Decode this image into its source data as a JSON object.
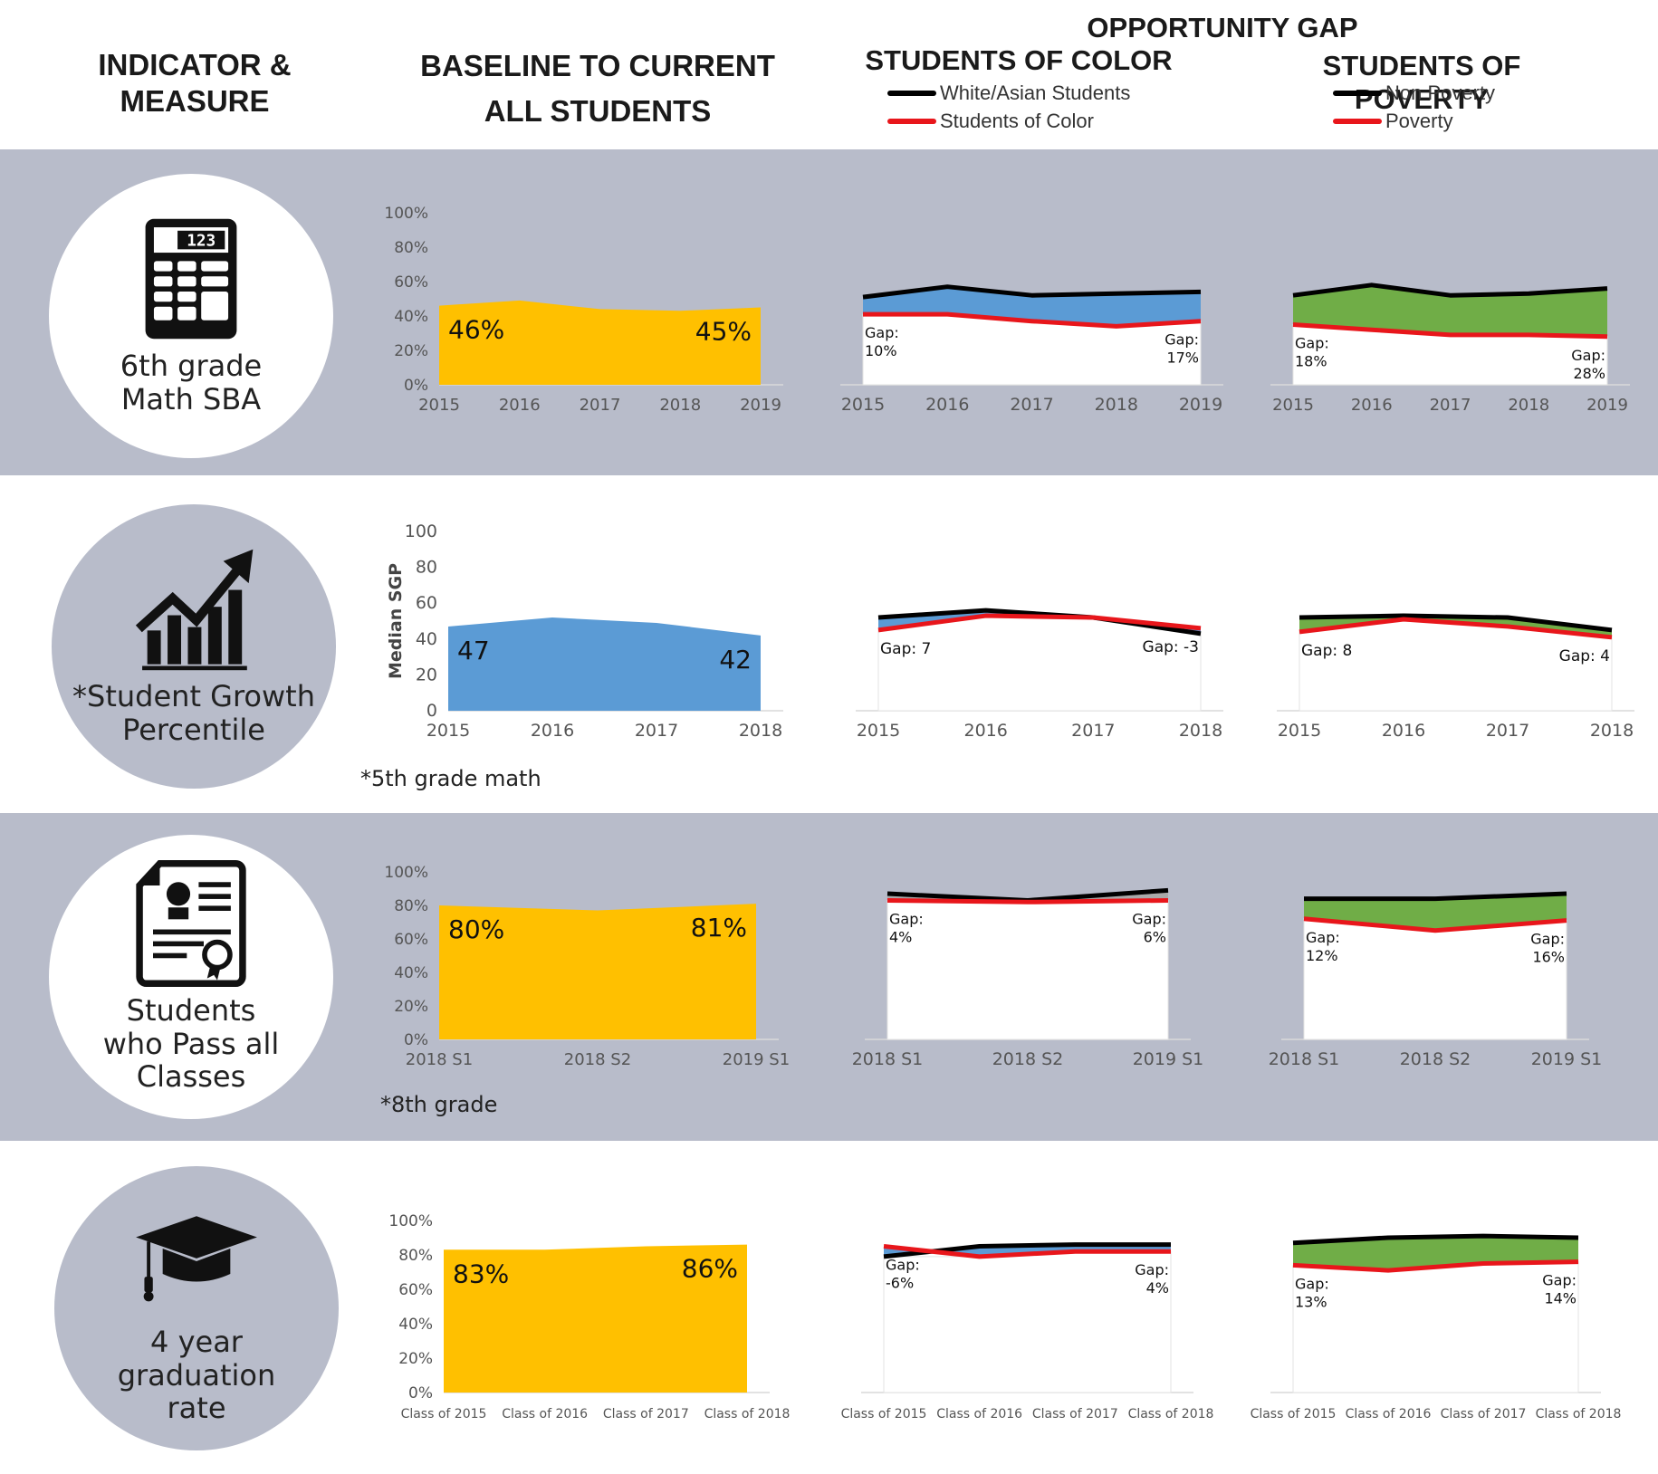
{
  "header": {
    "indicator": "INDICATOR &\nMEASURE",
    "baseline": "BASELINE TO CURRENT\nALL STUDENTS",
    "opportunity": "OPPORTUNITY GAP",
    "color_title": "STUDENTS OF COLOR",
    "poverty_title": "STUDENTS OF POVERTY"
  },
  "legend": {
    "color": [
      {
        "label": "White/Asian Students",
        "color": "#000000"
      },
      {
        "label": "Students of Color",
        "color": "#e8161b"
      }
    ],
    "poverty": [
      {
        "label": "Non Poverty",
        "color": "#000000"
      },
      {
        "label": "Poverty",
        "color": "#e8161b"
      }
    ]
  },
  "colors": {
    "band": "#b8bcca",
    "yellow": "#ffc000",
    "blue": "#5b9bd5",
    "green": "#70ad47",
    "black": "#000000",
    "red": "#e8161b"
  },
  "rows": [
    {
      "label": "6th grade\nMath SBA",
      "icon": "calculator-icon",
      "icon_text": "123",
      "circle": "white",
      "note": ""
    },
    {
      "label": "*Student Growth\nPercentile",
      "icon": "growth-chart-icon",
      "circle": "gray",
      "note": "*5th grade math"
    },
    {
      "label": "Students\nwho Pass all\nClasses",
      "icon": "certificate-icon",
      "circle": "white",
      "note": "*8th grade"
    },
    {
      "label": "4 year graduation\nrate",
      "icon": "graduation-cap-icon",
      "circle": "gray",
      "note": ""
    }
  ],
  "chart_data": [
    {
      "id": "r0-all",
      "type": "area",
      "categories": [
        "2015",
        "2016",
        "2017",
        "2018",
        "2019"
      ],
      "values": [
        46,
        49,
        44,
        43,
        45
      ],
      "ylim": [
        0,
        100
      ],
      "yticks": [
        "0%",
        "20%",
        "40%",
        "60%",
        "80%",
        "100%"
      ],
      "fill": "#ffc000",
      "labels": [
        "46%",
        "45%"
      ]
    },
    {
      "id": "r0-color",
      "type": "area",
      "categories": [
        "2015",
        "2016",
        "2017",
        "2018",
        "2019"
      ],
      "series": [
        {
          "values": [
            51,
            57,
            52,
            53,
            54
          ]
        },
        {
          "values": [
            41,
            41,
            37,
            34,
            37
          ]
        }
      ],
      "ylim": [
        0,
        100
      ],
      "fill": "#5b9bd5",
      "gap_first": "Gap:\n10%",
      "gap_last": "Gap:\n17%"
    },
    {
      "id": "r0-poverty",
      "type": "area",
      "categories": [
        "2015",
        "2016",
        "2017",
        "2018",
        "2019"
      ],
      "series": [
        {
          "values": [
            52,
            58,
            52,
            53,
            56
          ]
        },
        {
          "values": [
            35,
            32,
            29,
            29,
            28
          ]
        }
      ],
      "ylim": [
        0,
        100
      ],
      "fill": "#70ad47",
      "gap_first": "Gap:\n18%",
      "gap_last": "Gap:\n28%"
    },
    {
      "id": "r1-all",
      "type": "area",
      "categories": [
        "2015",
        "2016",
        "2017",
        "2018"
      ],
      "values": [
        47,
        52,
        49,
        42
      ],
      "ylim": [
        0,
        100
      ],
      "yticks": [
        "0",
        "20",
        "40",
        "60",
        "80",
        "100"
      ],
      "ylabel": "Median SGP",
      "fill": "#5b9bd5",
      "labels": [
        "47",
        "42"
      ]
    },
    {
      "id": "r1-color",
      "type": "area",
      "categories": [
        "2015",
        "2016",
        "2017",
        "2018"
      ],
      "series": [
        {
          "values": [
            52,
            56,
            52,
            43
          ]
        },
        {
          "values": [
            45,
            53,
            52,
            46
          ]
        }
      ],
      "ylim": [
        0,
        100
      ],
      "fill": "#5b9bd5",
      "gap_first": "Gap: 7",
      "gap_last": "Gap: -3"
    },
    {
      "id": "r1-poverty",
      "type": "area",
      "categories": [
        "2015",
        "2016",
        "2017",
        "2018"
      ],
      "series": [
        {
          "values": [
            52,
            53,
            52,
            45
          ]
        },
        {
          "values": [
            44,
            51,
            47,
            41
          ]
        }
      ],
      "ylim": [
        0,
        100
      ],
      "fill": "#70ad47",
      "gap_first": "Gap: 8",
      "gap_last": "Gap: 4"
    },
    {
      "id": "r2-all",
      "type": "area",
      "categories": [
        "2018 S1",
        "2018 S2",
        "2019 S1"
      ],
      "values": [
        80,
        77,
        81
      ],
      "ylim": [
        0,
        100
      ],
      "yticks": [
        "0%",
        "20%",
        "40%",
        "60%",
        "80%",
        "100%"
      ],
      "fill": "#ffc000",
      "labels": [
        "80%",
        "81%"
      ]
    },
    {
      "id": "r2-color",
      "type": "area",
      "categories": [
        "2018 S1",
        "2018 S2",
        "2019 S1"
      ],
      "series": [
        {
          "values": [
            87,
            83,
            89
          ]
        },
        {
          "values": [
            83,
            82,
            83
          ]
        }
      ],
      "ylim": [
        0,
        100
      ],
      "fill": "#a9a9a9",
      "gap_first": "Gap:\n4%",
      "gap_last": "Gap:\n6%"
    },
    {
      "id": "r2-poverty",
      "type": "area",
      "categories": [
        "2018 S1",
        "2018 S2",
        "2019 S1"
      ],
      "series": [
        {
          "values": [
            84,
            84,
            87
          ]
        },
        {
          "values": [
            72,
            65,
            71
          ]
        }
      ],
      "ylim": [
        0,
        100
      ],
      "fill": "#70ad47",
      "gap_first": "Gap:\n12%",
      "gap_last": "Gap:\n16%"
    },
    {
      "id": "r3-all",
      "type": "area",
      "categories": [
        "Class of 2015",
        "Class of 2016",
        "Class of 2017",
        "Class of 2018"
      ],
      "values": [
        83,
        83,
        85,
        86
      ],
      "ylim": [
        0,
        100
      ],
      "yticks": [
        "0%",
        "20%",
        "40%",
        "60%",
        "80%",
        "100%"
      ],
      "fill": "#ffc000",
      "labels": [
        "83%",
        "86%"
      ]
    },
    {
      "id": "r3-color",
      "type": "area",
      "categories": [
        "Class of 2015",
        "Class of 2016",
        "Class of 2017",
        "Class of 2018"
      ],
      "series": [
        {
          "values": [
            79,
            85,
            86,
            86
          ]
        },
        {
          "values": [
            85,
            79,
            82,
            82
          ]
        }
      ],
      "ylim": [
        0,
        100
      ],
      "fill": "#5b9bd5",
      "gap_first": "Gap:\n-6%",
      "gap_last": "Gap:\n4%"
    },
    {
      "id": "r3-poverty",
      "type": "area",
      "categories": [
        "Class of 2015",
        "Class of 2016",
        "Class of 2017",
        "Class of 2018"
      ],
      "series": [
        {
          "values": [
            87,
            90,
            91,
            90
          ]
        },
        {
          "values": [
            74,
            71,
            75,
            76
          ]
        }
      ],
      "ylim": [
        0,
        100
      ],
      "fill": "#70ad47",
      "gap_first": "Gap:\n13%",
      "gap_last": "Gap:\n14%"
    }
  ]
}
